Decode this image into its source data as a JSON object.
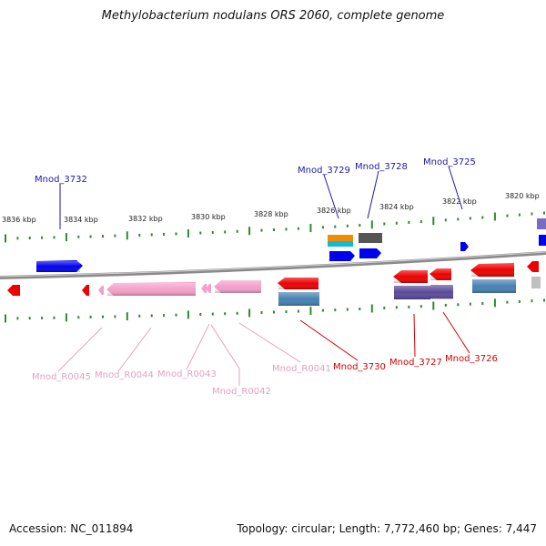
{
  "title": "Methylobacterium nodulans ORS 2060, complete genome",
  "footer": {
    "accession_label": "Accession:",
    "accession": "NC_011894",
    "topology_label": "Topology:",
    "topology": "circular",
    "length_label": "Length:",
    "length": "7,772,460 bp",
    "genes_label": "Genes:",
    "genes": "7,447"
  },
  "scale_ticks": [
    "3836 kbp",
    "3834 kbp",
    "3832 kbp",
    "3830 kbp",
    "3828 kbp",
    "3826 kbp",
    "3824 kbp",
    "3822 kbp",
    "3820 kbp"
  ],
  "colors": {
    "backbone": "#8a8a8a",
    "tick": "#2e8b2e",
    "label_blue": "#1a1aa6",
    "label_red": "#d40000",
    "label_pink": "#e6a0c0",
    "gene_blue": "#0000ee",
    "gene_red": "#ee0000",
    "gene_pink": "#f4a0c8",
    "gene_orange": "#f08c00",
    "gene_cyan": "#10b8d8",
    "gene_gray": "#555555",
    "gene_purple": "#5a4a9a",
    "gene_steel": "#4682b4",
    "gene_lightgray": "#c0c0c0",
    "gene_violet": "#7b6bc4"
  },
  "gene_labels": [
    {
      "id": "top-3732",
      "text": "Mnod_3732",
      "color": "label_blue"
    },
    {
      "id": "top-3729",
      "text": "Mnod_3729",
      "color": "label_blue"
    },
    {
      "id": "top-3728",
      "text": "Mnod_3728",
      "color": "label_blue"
    },
    {
      "id": "top-3725",
      "text": "Mnod_3725",
      "color": "label_blue"
    },
    {
      "id": "bot-R0045",
      "text": "Mnod_R0045",
      "color": "label_pink"
    },
    {
      "id": "bot-R0044",
      "text": "Mnod_R0044",
      "color": "label_pink"
    },
    {
      "id": "bot-R0043",
      "text": "Mnod_R0043",
      "color": "label_pink"
    },
    {
      "id": "bot-R0042",
      "text": "Mnod_R0042",
      "color": "label_pink"
    },
    {
      "id": "bot-R0041",
      "text": "Mnod_R0041",
      "color": "label_pink"
    },
    {
      "id": "bot-3730",
      "text": "Mnod_3730",
      "color": "label_red"
    },
    {
      "id": "bot-3727",
      "text": "Mnod_3727",
      "color": "label_red"
    },
    {
      "id": "bot-3726",
      "text": "Mnod_3726",
      "color": "label_red"
    }
  ]
}
